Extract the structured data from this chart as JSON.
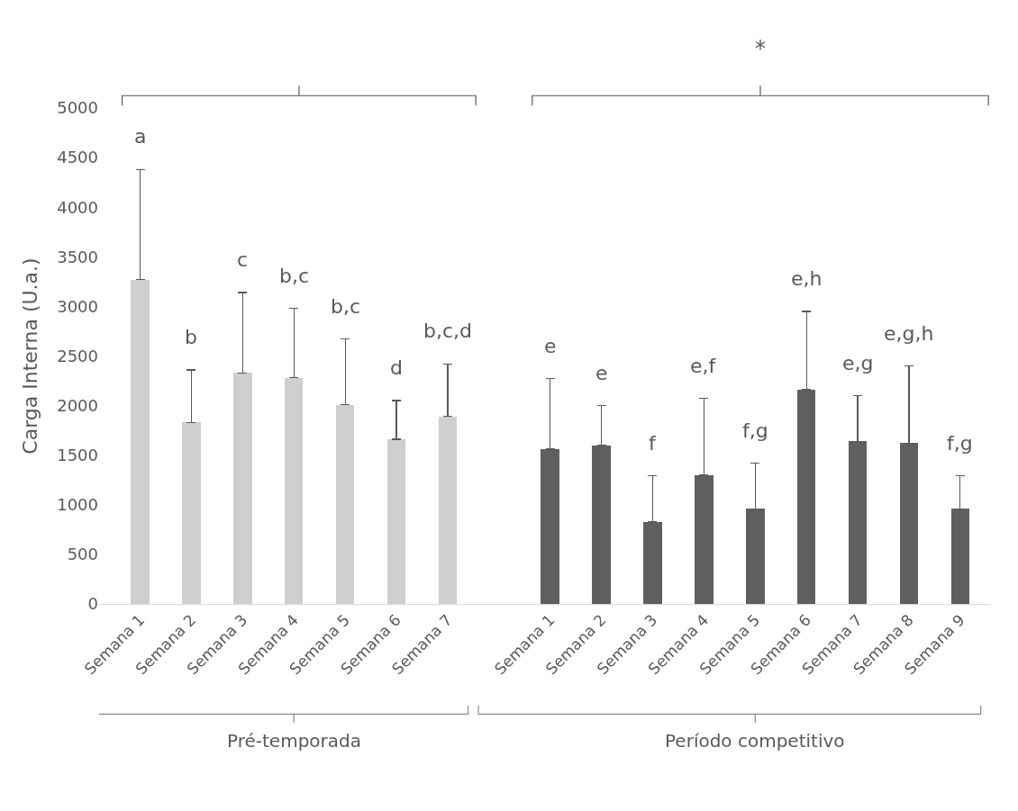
{
  "chart_data": {
    "type": "bar",
    "ylabel": "Carga Interna (U.a.)",
    "annotations": [
      "*",
      "Pré-temporada",
      "Período competitivo",
      {
        "text": "a",
        "y": 4380
      },
      {
        "text": "b",
        "y": 2360
      },
      {
        "text": "c",
        "y": 3140
      },
      {
        "text": "b,c",
        "y": 2980
      },
      {
        "text": "b,c",
        "y": 2670
      },
      {
        "text": "d",
        "y": 2050
      },
      {
        "text": "b,c,d",
        "y": 2420
      },
      {
        "text": "e",
        "y": 2270
      },
      {
        "text": "e",
        "y": 2000
      },
      {
        "text": "f",
        "y": 1290
      },
      {
        "text": "e,f",
        "y": 2070
      },
      {
        "text": "f,g",
        "y": 1420
      },
      {
        "text": "e,h",
        "y": 2950
      },
      {
        "text": "e,g",
        "y": 2100
      },
      {
        "text": "e,g,h",
        "y": 2400
      },
      {
        "text": "f,g",
        "y": 1290
      }
    ],
    "categories": [
      "Semana 1",
      "Semana 2",
      "Semana 3",
      "Semana 4",
      "Semana 5",
      "Semana 6",
      "Semana 7",
      null,
      "Semana 1",
      "Semana 2",
      "Semana 3",
      "Semana 4",
      "Semana 5",
      "Semana 6",
      "Semana 7",
      "Semana 8",
      "Semana 9"
    ],
    "series": [
      {
        "color": "#d0cecf",
        "values": [
          3270,
          1830,
          2330,
          2280,
          2010,
          1660,
          1890,
          null,
          null,
          null,
          null,
          null,
          null,
          null,
          null,
          null,
          null
        ],
        "errors": [
          [
            3270,
            4380
          ],
          [
            1830,
            2360
          ],
          [
            2330,
            3140
          ],
          [
            2280,
            2980
          ],
          [
            2010,
            2670
          ],
          [
            1660,
            2050
          ],
          [
            1890,
            2420
          ],
          null,
          null,
          null,
          null,
          null,
          null,
          null,
          null,
          null,
          null
        ]
      },
      {
        "color": "#5f5f5f",
        "values": [
          null,
          null,
          null,
          null,
          null,
          null,
          null,
          null,
          1560,
          1600,
          830,
          1300,
          960,
          2160,
          1640,
          1620,
          960
        ],
        "errors": [
          null,
          null,
          null,
          null,
          null,
          null,
          null,
          null,
          [
            1560,
            2270
          ],
          [
            1600,
            2000
          ],
          [
            830,
            1290
          ],
          [
            1300,
            2070
          ],
          [
            960,
            1420
          ],
          [
            2160,
            2950
          ],
          [
            1640,
            2100
          ],
          [
            1620,
            2400
          ],
          [
            960,
            1290
          ]
        ]
      }
    ],
    "ylim": [
      0,
      5000
    ],
    "yticks": [
      0,
      500,
      1000,
      1500,
      2000,
      2500,
      3000,
      3500,
      4000,
      4500,
      5000
    ]
  }
}
